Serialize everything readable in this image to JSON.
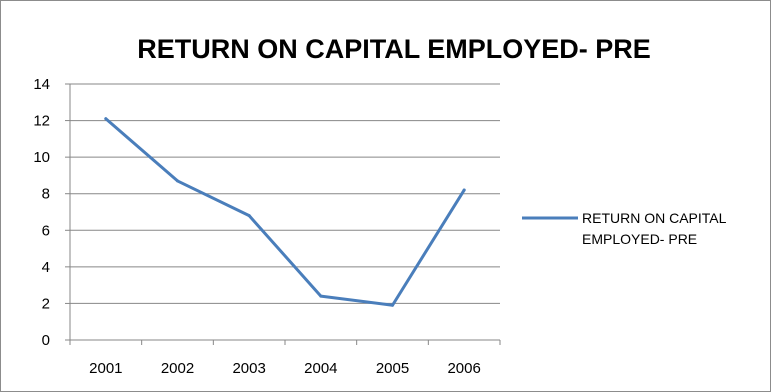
{
  "chart_data": {
    "type": "line",
    "title": "RETURN ON CAPITAL EMPLOYED- PRE",
    "xlabel": "",
    "ylabel": "",
    "categories": [
      "2001",
      "2002",
      "2003",
      "2004",
      "2005",
      "2006"
    ],
    "series": [
      {
        "name": "RETURN ON CAPITAL EMPLOYED- PRE",
        "legend_lines": [
          "RETURN ON CAPITAL",
          "EMPLOYED- PRE"
        ],
        "values": [
          12.1,
          8.7,
          6.8,
          2.4,
          1.9,
          8.2
        ],
        "color": "#4a7ebb"
      }
    ],
    "ylim": [
      0,
      14
    ],
    "yticks": [
      "0",
      "2",
      "4",
      "6",
      "8",
      "10",
      "12",
      "14"
    ],
    "grid": true,
    "legend_position": "right",
    "gridline_color": "#878787"
  }
}
